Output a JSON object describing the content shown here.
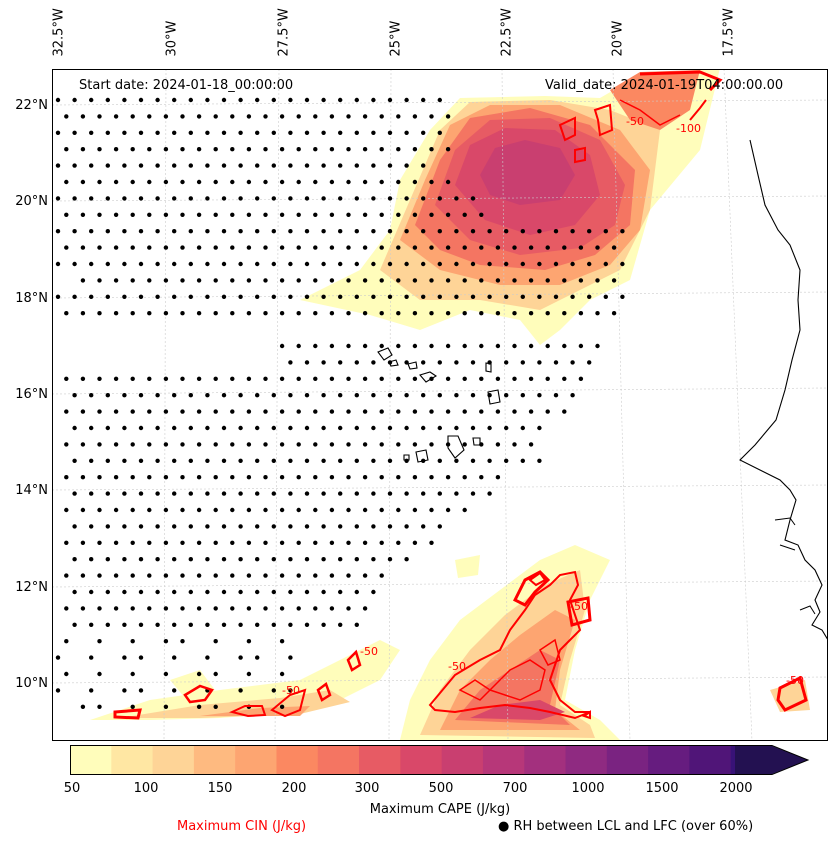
{
  "header": {
    "start_date": "Start date: 2024-01-18_00:00:00",
    "valid_date": "Valid_date: 2024-01-19T04:00:00.00"
  },
  "axes": {
    "lon_labels": [
      "32.5°W",
      "30°W",
      "27.5°W",
      "25°W",
      "22.5°W",
      "20°W",
      "17.5°W"
    ],
    "lat_labels": [
      "22°N",
      "20°N",
      "18°N",
      "16°N",
      "14°N",
      "12°N",
      "10°N"
    ]
  },
  "contours": {
    "cin_labels": [
      "-50",
      "-100",
      "-50",
      "-50",
      "-50",
      "-50",
      "-50"
    ]
  },
  "colorbar": {
    "label": "Maximum CAPE (J/kg)",
    "ticks": [
      "50",
      "100",
      "150",
      "200",
      "300",
      "500",
      "700",
      "1000",
      "1500",
      "2000"
    ],
    "colors": [
      "#fffdbb",
      "#ffe7a3",
      "#fed497",
      "#feba80",
      "#fda571",
      "#fb8861",
      "#f47562",
      "#e75b64",
      "#d94869",
      "#c93f70",
      "#b73779",
      "#a3307e",
      "#8f2a81",
      "#7a2381",
      "#661c7f",
      "#501578",
      "#381277",
      "#231151"
    ]
  },
  "legend": {
    "cin_text": "Maximum CIN (J/kg)",
    "cin_color": "#ff0000",
    "rh_text": "RH between LCL and LFC (over 60%)",
    "rh_marker": "●"
  }
}
